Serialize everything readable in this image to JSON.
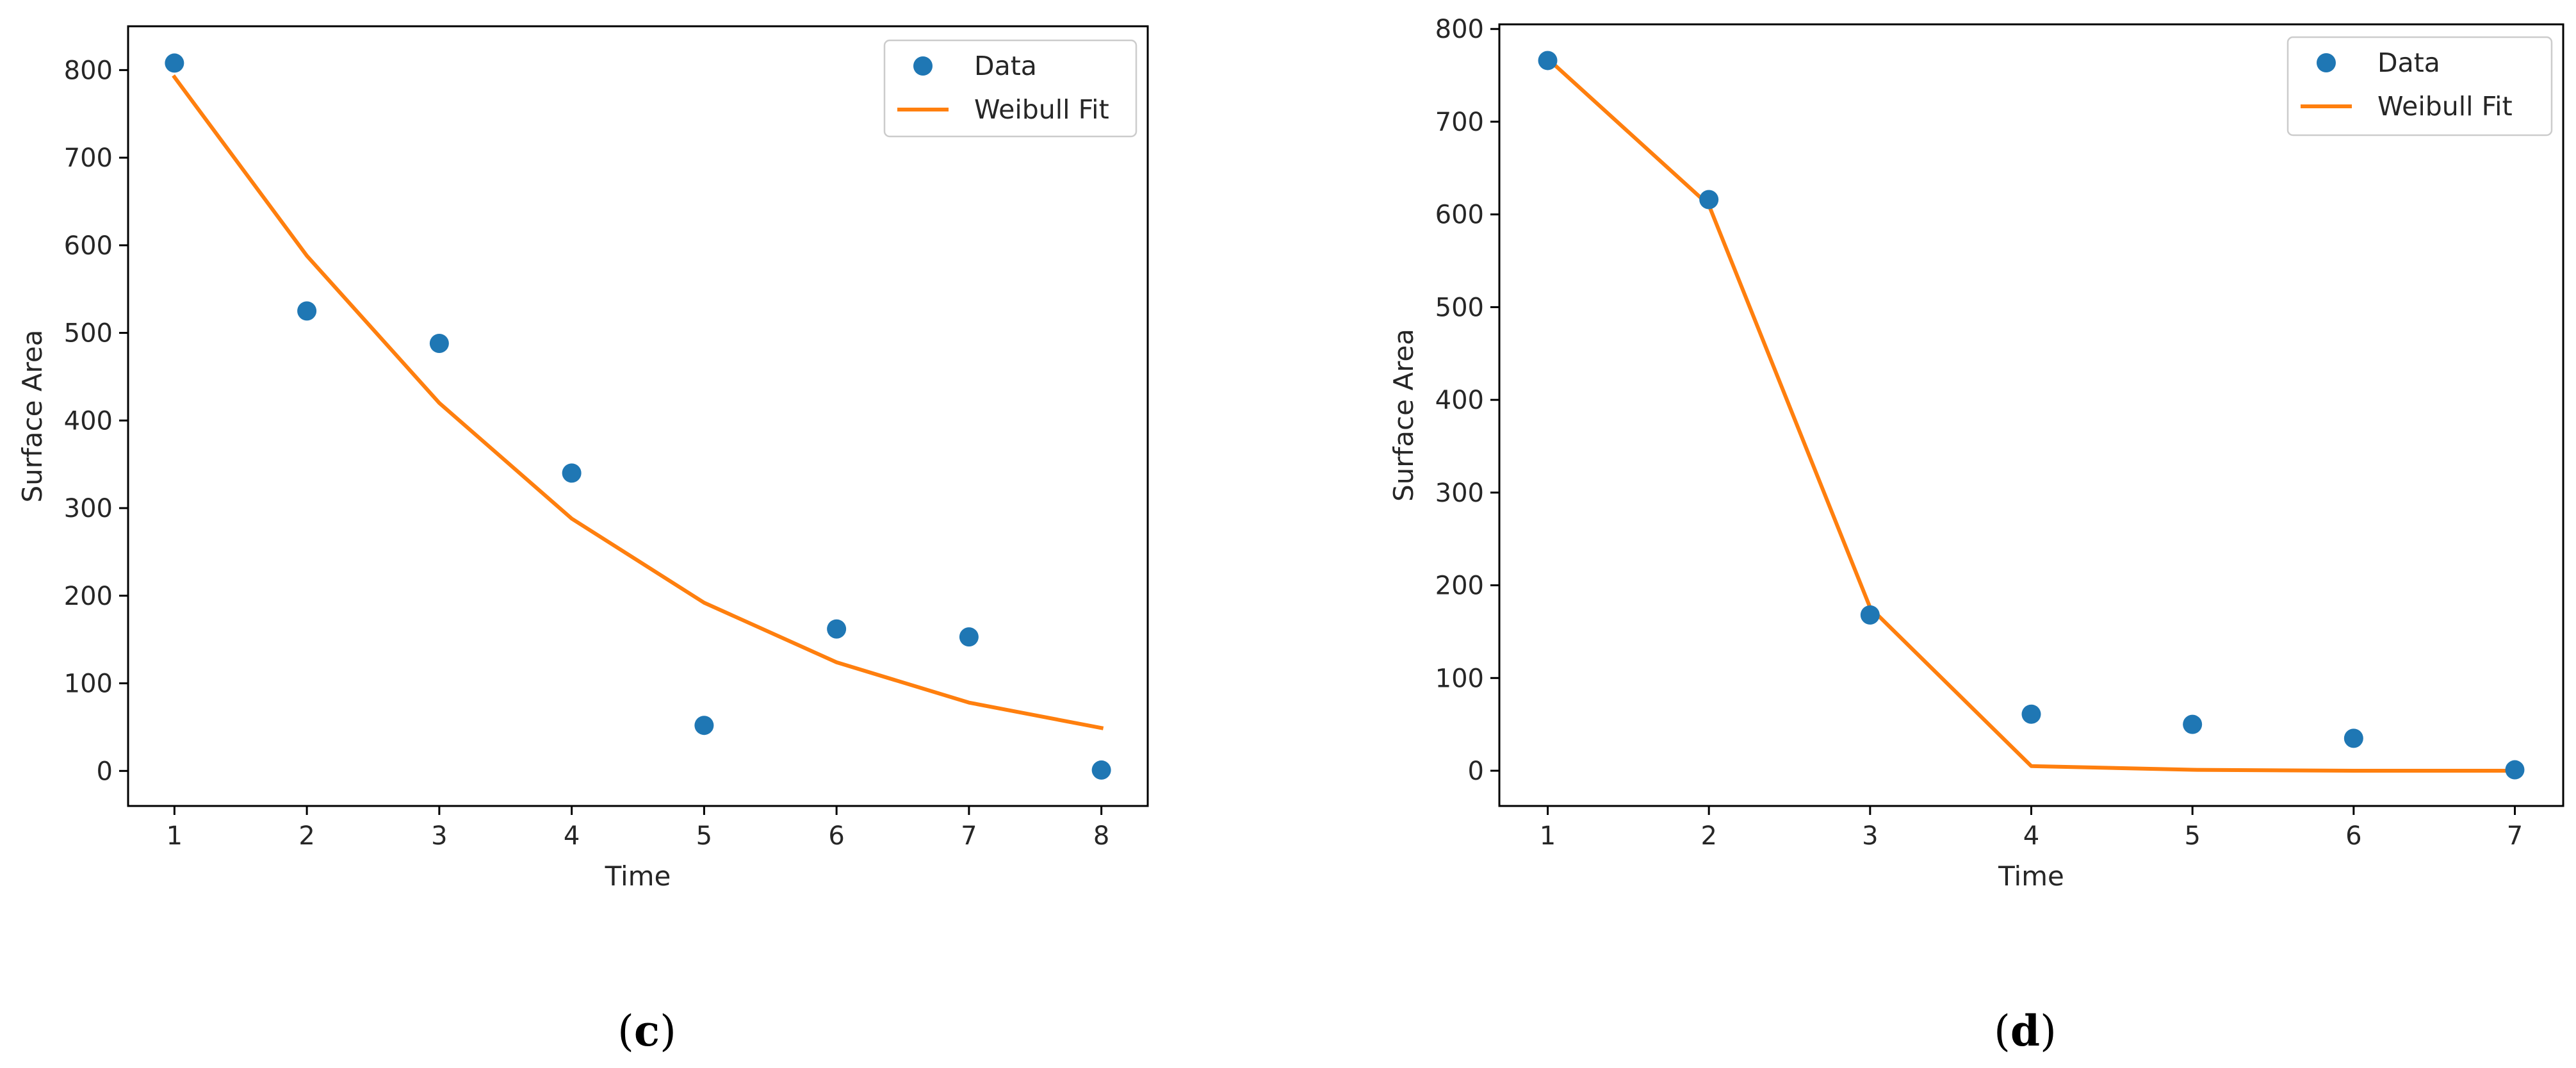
{
  "chart_data": [
    {
      "type": "scatter",
      "panel_label": "c",
      "title": "",
      "xlabel": "Time",
      "ylabel": "Surface Area",
      "xlim": [
        0.65,
        8.35
      ],
      "ylim": [
        -40,
        850
      ],
      "xticks": [
        1,
        2,
        3,
        4,
        5,
        6,
        7,
        8
      ],
      "yticks": [
        0,
        100,
        200,
        300,
        400,
        500,
        600,
        700,
        800
      ],
      "grid": false,
      "legend_position": "top-right",
      "series": [
        {
          "name": "Data",
          "kind": "scatter",
          "color": "#1f77b4",
          "x": [
            1,
            2,
            3,
            4,
            5,
            6,
            7,
            8
          ],
          "y": [
            808,
            525,
            488,
            340,
            52,
            162,
            153,
            1
          ]
        },
        {
          "name": "Weibull Fit",
          "kind": "line",
          "color": "#ff7f0e",
          "x": [
            1,
            2,
            3,
            4,
            5,
            6,
            7,
            8
          ],
          "y": [
            792,
            588,
            420,
            288,
            192,
            124,
            78,
            49
          ]
        }
      ]
    },
    {
      "type": "scatter",
      "panel_label": "d",
      "title": "",
      "xlabel": "Time",
      "ylabel": "Surface Area",
      "xlim": [
        0.7,
        7.3
      ],
      "ylim": [
        -38,
        805
      ],
      "xticks": [
        1,
        2,
        3,
        4,
        5,
        6,
        7
      ],
      "yticks": [
        0,
        100,
        200,
        300,
        400,
        500,
        600,
        700,
        800
      ],
      "grid": false,
      "legend_position": "top-right",
      "series": [
        {
          "name": "Data",
          "kind": "scatter",
          "color": "#1f77b4",
          "x": [
            1,
            2,
            3,
            4,
            5,
            6,
            7
          ],
          "y": [
            766,
            616,
            168,
            61,
            50,
            35,
            1
          ]
        },
        {
          "name": "Weibull Fit",
          "kind": "line",
          "color": "#ff7f0e",
          "x": [
            1,
            2,
            3,
            4,
            5,
            6,
            7
          ],
          "y": [
            768,
            610,
            176,
            5,
            1,
            0,
            0
          ]
        }
      ]
    }
  ]
}
